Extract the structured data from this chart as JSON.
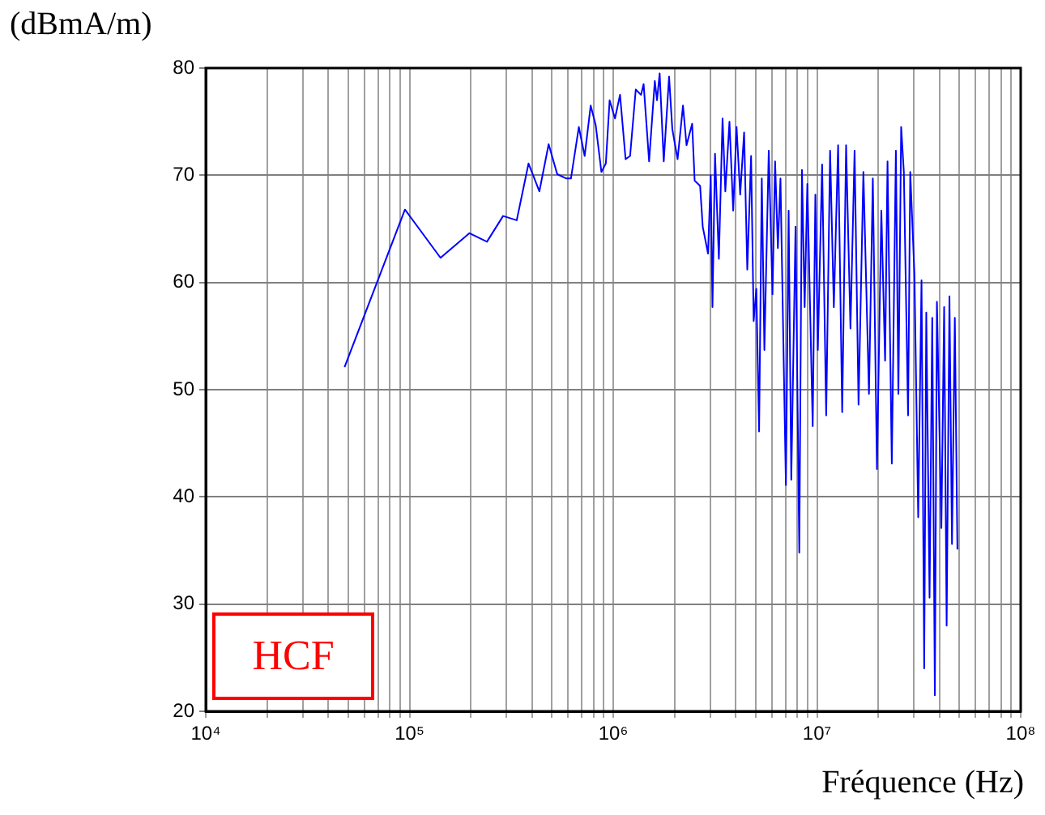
{
  "chart_data": {
    "type": "line",
    "xlabel": "Fréquence (Hz)",
    "ylabel": "(dBmA/m)",
    "annotations": [
      "HCF"
    ],
    "log": "x",
    "grid": true,
    "legend": false,
    "marker": "none",
    "line_style": "solid",
    "xlim": [
      10000,
      100000000
    ],
    "ylim": [
      20,
      80
    ],
    "xticks": [
      {
        "value": 10000,
        "label": "10⁴"
      },
      {
        "value": 20000,
        "label": null
      },
      {
        "value": 30000,
        "label": null
      },
      {
        "value": 40000,
        "label": null
      },
      {
        "value": 50000,
        "label": null
      },
      {
        "value": 60000,
        "label": null
      },
      {
        "value": 70000,
        "label": null
      },
      {
        "value": 80000,
        "label": null
      },
      {
        "value": 90000,
        "label": null
      },
      {
        "value": 100000,
        "label": "10⁵"
      },
      {
        "value": 200000,
        "label": null
      },
      {
        "value": 300000,
        "label": null
      },
      {
        "value": 400000,
        "label": null
      },
      {
        "value": 500000,
        "label": null
      },
      {
        "value": 600000,
        "label": null
      },
      {
        "value": 700000,
        "label": null
      },
      {
        "value": 800000,
        "label": null
      },
      {
        "value": 900000,
        "label": null
      },
      {
        "value": 1000000,
        "label": "10⁶"
      },
      {
        "value": 2000000,
        "label": null
      },
      {
        "value": 3000000,
        "label": null
      },
      {
        "value": 4000000,
        "label": null
      },
      {
        "value": 5000000,
        "label": null
      },
      {
        "value": 6000000,
        "label": null
      },
      {
        "value": 7000000,
        "label": null
      },
      {
        "value": 8000000,
        "label": null
      },
      {
        "value": 9000000,
        "label": null
      },
      {
        "value": 10000000,
        "label": "10⁷"
      },
      {
        "value": 20000000,
        "label": null
      },
      {
        "value": 30000000,
        "label": null
      },
      {
        "value": 40000000,
        "label": null
      },
      {
        "value": 50000000,
        "label": null
      },
      {
        "value": 60000000,
        "label": null
      },
      {
        "value": 70000000,
        "label": null
      },
      {
        "value": 80000000,
        "label": null
      },
      {
        "value": 90000000,
        "label": null
      },
      {
        "value": 100000000,
        "label": "10⁸"
      }
    ],
    "yticks": [
      20,
      30,
      40,
      50,
      60,
      70,
      80
    ],
    "series": [
      {
        "color": "#0000ff",
        "x": [
          48000,
          95000,
          142000,
          197000,
          240000,
          288000,
          336000,
          384000,
          434000,
          482000,
          531000,
          589000,
          620000,
          678000,
          724000,
          775000,
          820000,
          875000,
          920000,
          960000,
          1020000,
          1080000,
          1150000,
          1210000,
          1290000,
          1370000,
          1410000,
          1500000,
          1600000,
          1640000,
          1690000,
          1770000,
          1880000,
          1950000,
          2070000,
          2200000,
          2290000,
          2440000,
          2510000,
          2670000,
          2750000,
          2920000,
          3010000,
          3070000,
          3160000,
          3300000,
          3440000,
          3550000,
          3720000,
          3880000,
          4030000,
          4200000,
          4390000,
          4550000,
          4750000,
          4890000,
          5040000,
          5200000,
          5360000,
          5520000,
          5800000,
          6050000,
          6230000,
          6430000,
          6620000,
          7040000,
          7260000,
          7480000,
          7850000,
          8190000,
          8440000,
          8700000,
          8970000,
          9530000,
          9820000,
          10100000,
          10600000,
          11100000,
          11600000,
          12100000,
          12700000,
          13300000,
          13900000,
          14600000,
          15300000,
          16000000,
          16900000,
          18000000,
          18800000,
          19700000,
          20700000,
          21600000,
          22200000,
          23300000,
          24400000,
          25100000,
          25900000,
          26700000,
          28000000,
          28700000,
          30100000,
          31400000,
          32600000,
          33600000,
          34400000,
          35700000,
          36800000,
          37900000,
          38800000,
          40800000,
          42100000,
          43300000,
          44700000,
          46000000,
          47500000,
          48900000
        ],
        "values": [
          52.1,
          66.8,
          62.3,
          64.6,
          63.8,
          66.2,
          65.8,
          71.1,
          68.5,
          72.9,
          70.1,
          69.7,
          69.7,
          74.5,
          71.8,
          76.5,
          74.7,
          70.3,
          71.1,
          77.0,
          75.3,
          77.5,
          71.5,
          71.8,
          78.0,
          77.5,
          78.5,
          71.3,
          78.8,
          77.0,
          79.5,
          71.3,
          79.2,
          74.3,
          71.5,
          76.5,
          72.8,
          74.8,
          69.5,
          69.0,
          65.2,
          62.7,
          70.0,
          57.7,
          72.0,
          62.2,
          75.3,
          68.5,
          75.0,
          66.7,
          74.5,
          68.2,
          74.0,
          61.2,
          71.8,
          56.4,
          59.4,
          46.1,
          69.7,
          53.7,
          72.3,
          58.9,
          71.3,
          63.2,
          69.7,
          41.1,
          66.7,
          41.6,
          65.2,
          34.8,
          70.5,
          57.7,
          69.2,
          46.6,
          68.2,
          53.7,
          71.0,
          47.6,
          72.3,
          57.7,
          72.8,
          47.9,
          72.8,
          55.7,
          72.3,
          48.6,
          70.3,
          49.6,
          69.7,
          42.6,
          66.7,
          52.7,
          71.3,
          43.1,
          72.3,
          49.6,
          74.5,
          70.3,
          47.6,
          70.3,
          60.7,
          38.1,
          60.2,
          24.0,
          57.2,
          30.6,
          56.7,
          21.5,
          58.2,
          37.1,
          57.7,
          28.0,
          58.7,
          35.6,
          56.7,
          35.1
        ]
      }
    ]
  }
}
